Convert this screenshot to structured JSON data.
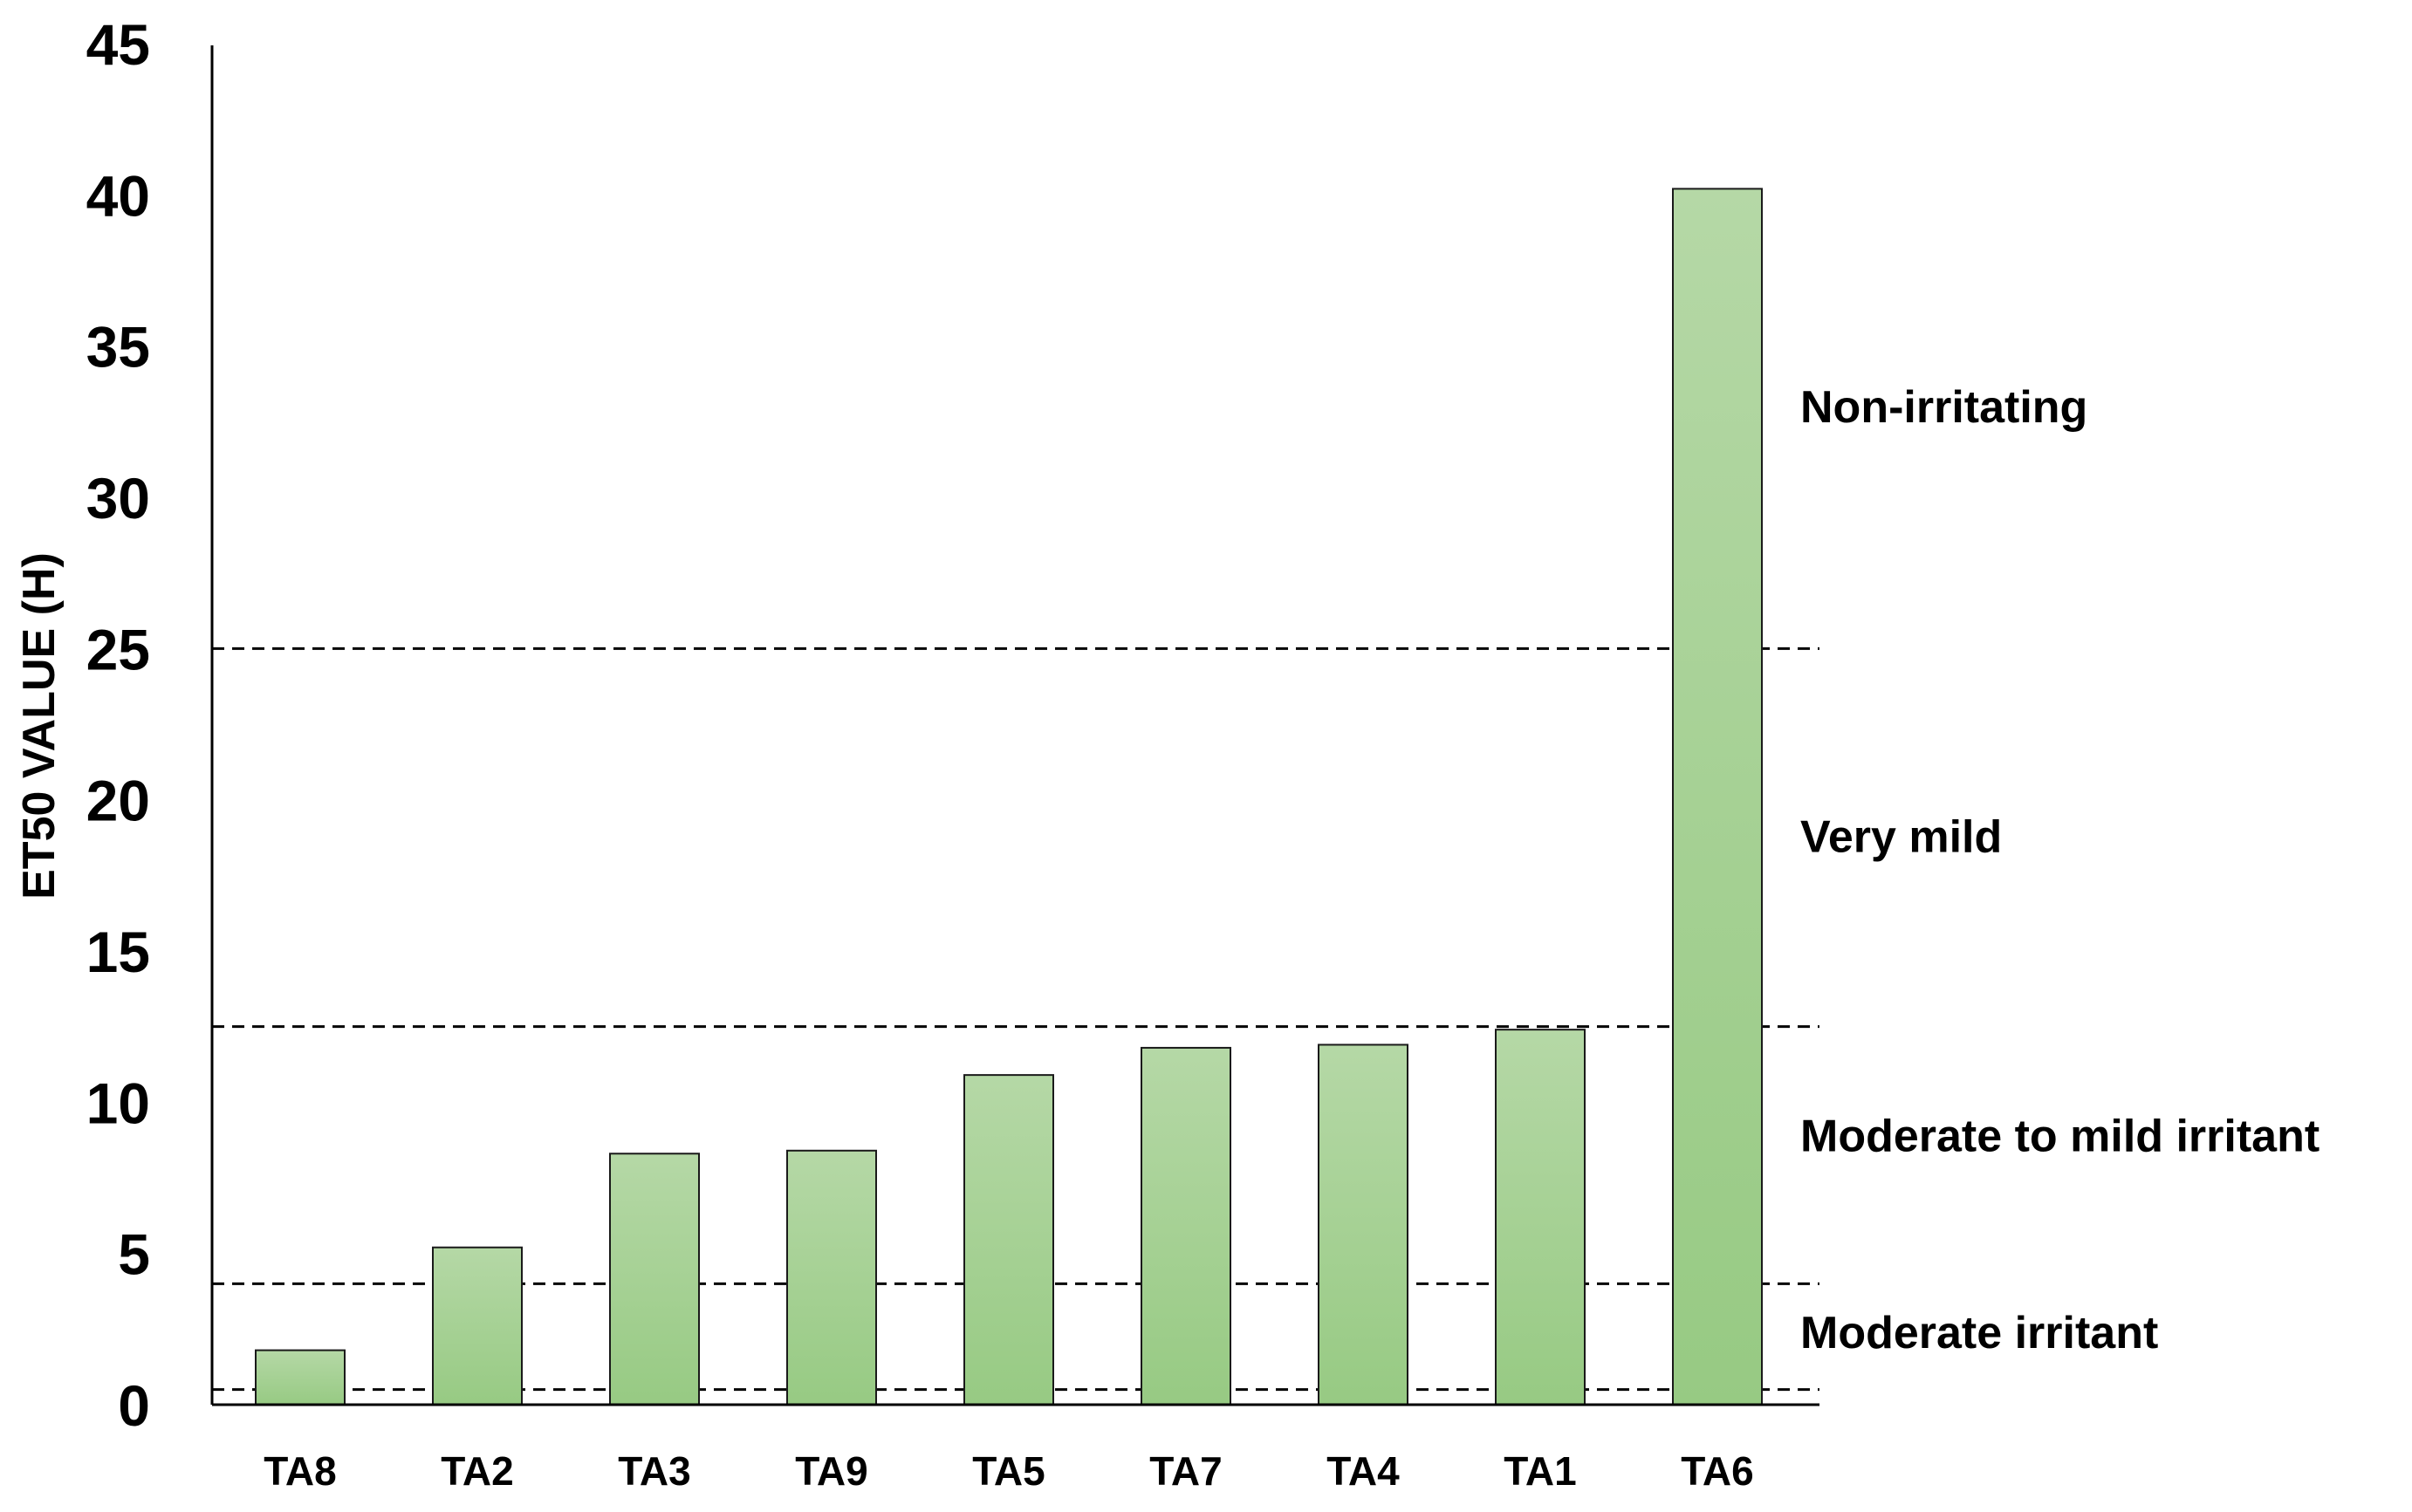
{
  "chart_data": {
    "type": "bar",
    "title": "",
    "xlabel": "",
    "ylabel": "ET50 VALUE (H)",
    "ylim": [
      0,
      45
    ],
    "yticks": [
      0,
      5,
      10,
      15,
      20,
      25,
      30,
      35,
      40,
      45
    ],
    "categories": [
      "TA8",
      "TA2",
      "TA3",
      "TA9",
      "TA5",
      "TA7",
      "TA4",
      "TA1",
      "TA6"
    ],
    "values": [
      1.8,
      5.2,
      8.3,
      8.4,
      10.9,
      11.8,
      11.9,
      12.4,
      40.2
    ],
    "grid": false,
    "legend": "none",
    "threshold_lines": [
      0.5,
      4.0,
      12.5,
      25.0
    ],
    "zones": [
      {
        "label": "Non-irritating",
        "y": 33
      },
      {
        "label": "Very mild",
        "y": 18.8
      },
      {
        "label": "Moderate to mild irritant",
        "y": 8.9
      },
      {
        "label": "Moderate irritant",
        "y": 2.4
      }
    ],
    "colors": {
      "bar_top": "#b5d8a6",
      "bar_bottom": "#97ca83",
      "bar_stroke": "#1a1a1a",
      "axis": "#000000",
      "dashed_line": "#000000"
    }
  }
}
